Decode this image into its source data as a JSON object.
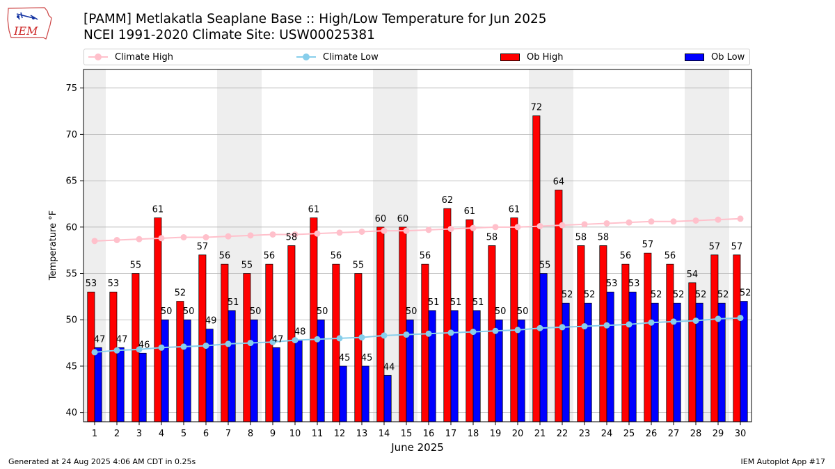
{
  "header": {
    "logo_text": "IEM",
    "title_line1": "[PAMM] Metlakatla Seaplane Base :: High/Low Temperature for Jun 2025",
    "title_line2": "NCEI 1991-2020 Climate Site: USW00025381"
  },
  "footer": {
    "left": "Generated at 24 Aug 2025 4:06 AM CDT in 0.25s",
    "right": "IEM Autoplot App #17"
  },
  "colors": {
    "ob_high": "#ff0000",
    "ob_low": "#0000ff",
    "climate_high": "#ffc0cb",
    "climate_low": "#87ceeb",
    "weekend_shade": "#eeeeee",
    "grid": "#b0b0b0"
  },
  "chart_data": {
    "type": "bar",
    "title": "[PAMM] Metlakatla Seaplane Base :: High/Low Temperature for Jun 2025",
    "subtitle": "NCEI 1991-2020 Climate Site: USW00025381",
    "xlabel": "June 2025",
    "ylabel": "Temperature °F",
    "ylim": [
      39,
      77
    ],
    "yticks": [
      40,
      45,
      50,
      55,
      60,
      65,
      70,
      75
    ],
    "grid": true,
    "legend_position": "top",
    "categories": [
      "1",
      "2",
      "3",
      "4",
      "5",
      "6",
      "7",
      "8",
      "9",
      "10",
      "11",
      "12",
      "13",
      "14",
      "15",
      "16",
      "17",
      "18",
      "19",
      "20",
      "21",
      "22",
      "23",
      "24",
      "25",
      "26",
      "27",
      "28",
      "29",
      "30"
    ],
    "shaded_weekend_days": [
      [
        1,
        1
      ],
      [
        7,
        8
      ],
      [
        14,
        15
      ],
      [
        21,
        22
      ],
      [
        28,
        29
      ]
    ],
    "series": [
      {
        "name": "Climate High",
        "kind": "line",
        "values": [
          58.5,
          58.6,
          58.7,
          58.8,
          58.9,
          58.9,
          59.0,
          59.1,
          59.2,
          59.2,
          59.3,
          59.4,
          59.5,
          59.6,
          59.6,
          59.7,
          59.8,
          59.9,
          60.0,
          60.0,
          60.1,
          60.2,
          60.3,
          60.4,
          60.5,
          60.6,
          60.6,
          60.7,
          60.8,
          60.9
        ]
      },
      {
        "name": "Climate Low",
        "kind": "line",
        "values": [
          46.5,
          46.7,
          46.8,
          47.0,
          47.1,
          47.2,
          47.4,
          47.5,
          47.6,
          47.8,
          47.9,
          48.0,
          48.1,
          48.3,
          48.4,
          48.5,
          48.6,
          48.7,
          48.8,
          48.9,
          49.1,
          49.2,
          49.3,
          49.4,
          49.5,
          49.7,
          49.8,
          49.9,
          50.1,
          50.2
        ]
      },
      {
        "name": "Ob High",
        "kind": "bar",
        "values": [
          53,
          53,
          55,
          61,
          52,
          57,
          56,
          55,
          56,
          58,
          61,
          56,
          55,
          60,
          60,
          56,
          62,
          61,
          58,
          61,
          72,
          64,
          58,
          58,
          56,
          57,
          56,
          54,
          57,
          57
        ],
        "heights": [
          53,
          53,
          55,
          61,
          52,
          57,
          56,
          55,
          56,
          58,
          61,
          56,
          55,
          60,
          60,
          56,
          62,
          60.8,
          58,
          61,
          72,
          64,
          58,
          58,
          56,
          57.2,
          56,
          54,
          57,
          57
        ]
      },
      {
        "name": "Ob Low",
        "kind": "bar",
        "values": [
          47,
          47,
          46,
          50,
          50,
          49,
          51,
          50,
          47,
          48,
          50,
          45,
          45,
          44,
          50,
          51,
          51,
          51,
          50,
          50,
          55,
          52,
          52,
          53,
          53,
          52,
          52,
          52,
          52,
          52
        ],
        "heights": [
          47,
          47,
          46.4,
          50,
          50,
          49,
          51,
          50,
          47,
          47.8,
          50,
          45,
          45,
          44,
          50,
          51,
          51,
          51,
          50,
          50,
          55,
          51.8,
          51.8,
          53,
          53,
          51.8,
          51.8,
          51.8,
          51.8,
          52
        ]
      }
    ]
  }
}
